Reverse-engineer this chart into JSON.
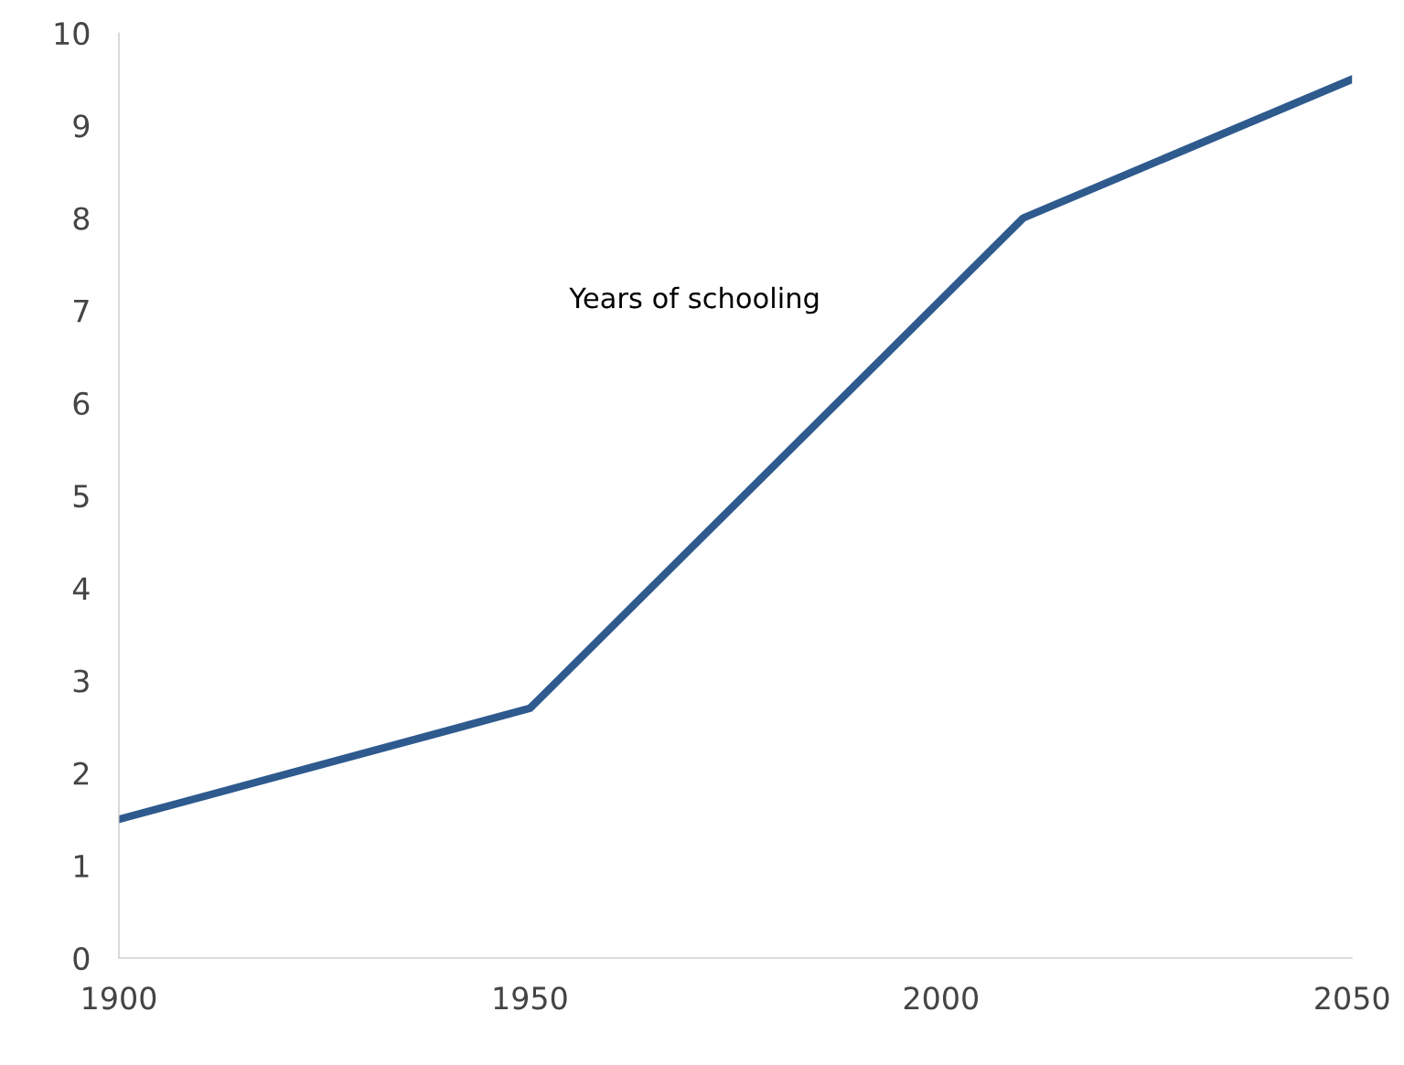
{
  "chart_data": {
    "type": "line",
    "x": [
      1900,
      1950,
      2010,
      2050
    ],
    "series": [
      {
        "name": "Years of schooling",
        "color": "#2e5a8e",
        "values": [
          1.5,
          2.7,
          8.0,
          9.5
        ]
      }
    ],
    "xlim": [
      1900,
      2050
    ],
    "xticks": [
      1900,
      1950,
      2000,
      2050
    ],
    "ylim": [
      0,
      10
    ],
    "yticks": [
      0,
      1,
      2,
      3,
      4,
      5,
      6,
      7,
      8,
      9,
      10
    ],
    "grid": false,
    "legend": false,
    "marker": "none",
    "line_style": "solid"
  }
}
